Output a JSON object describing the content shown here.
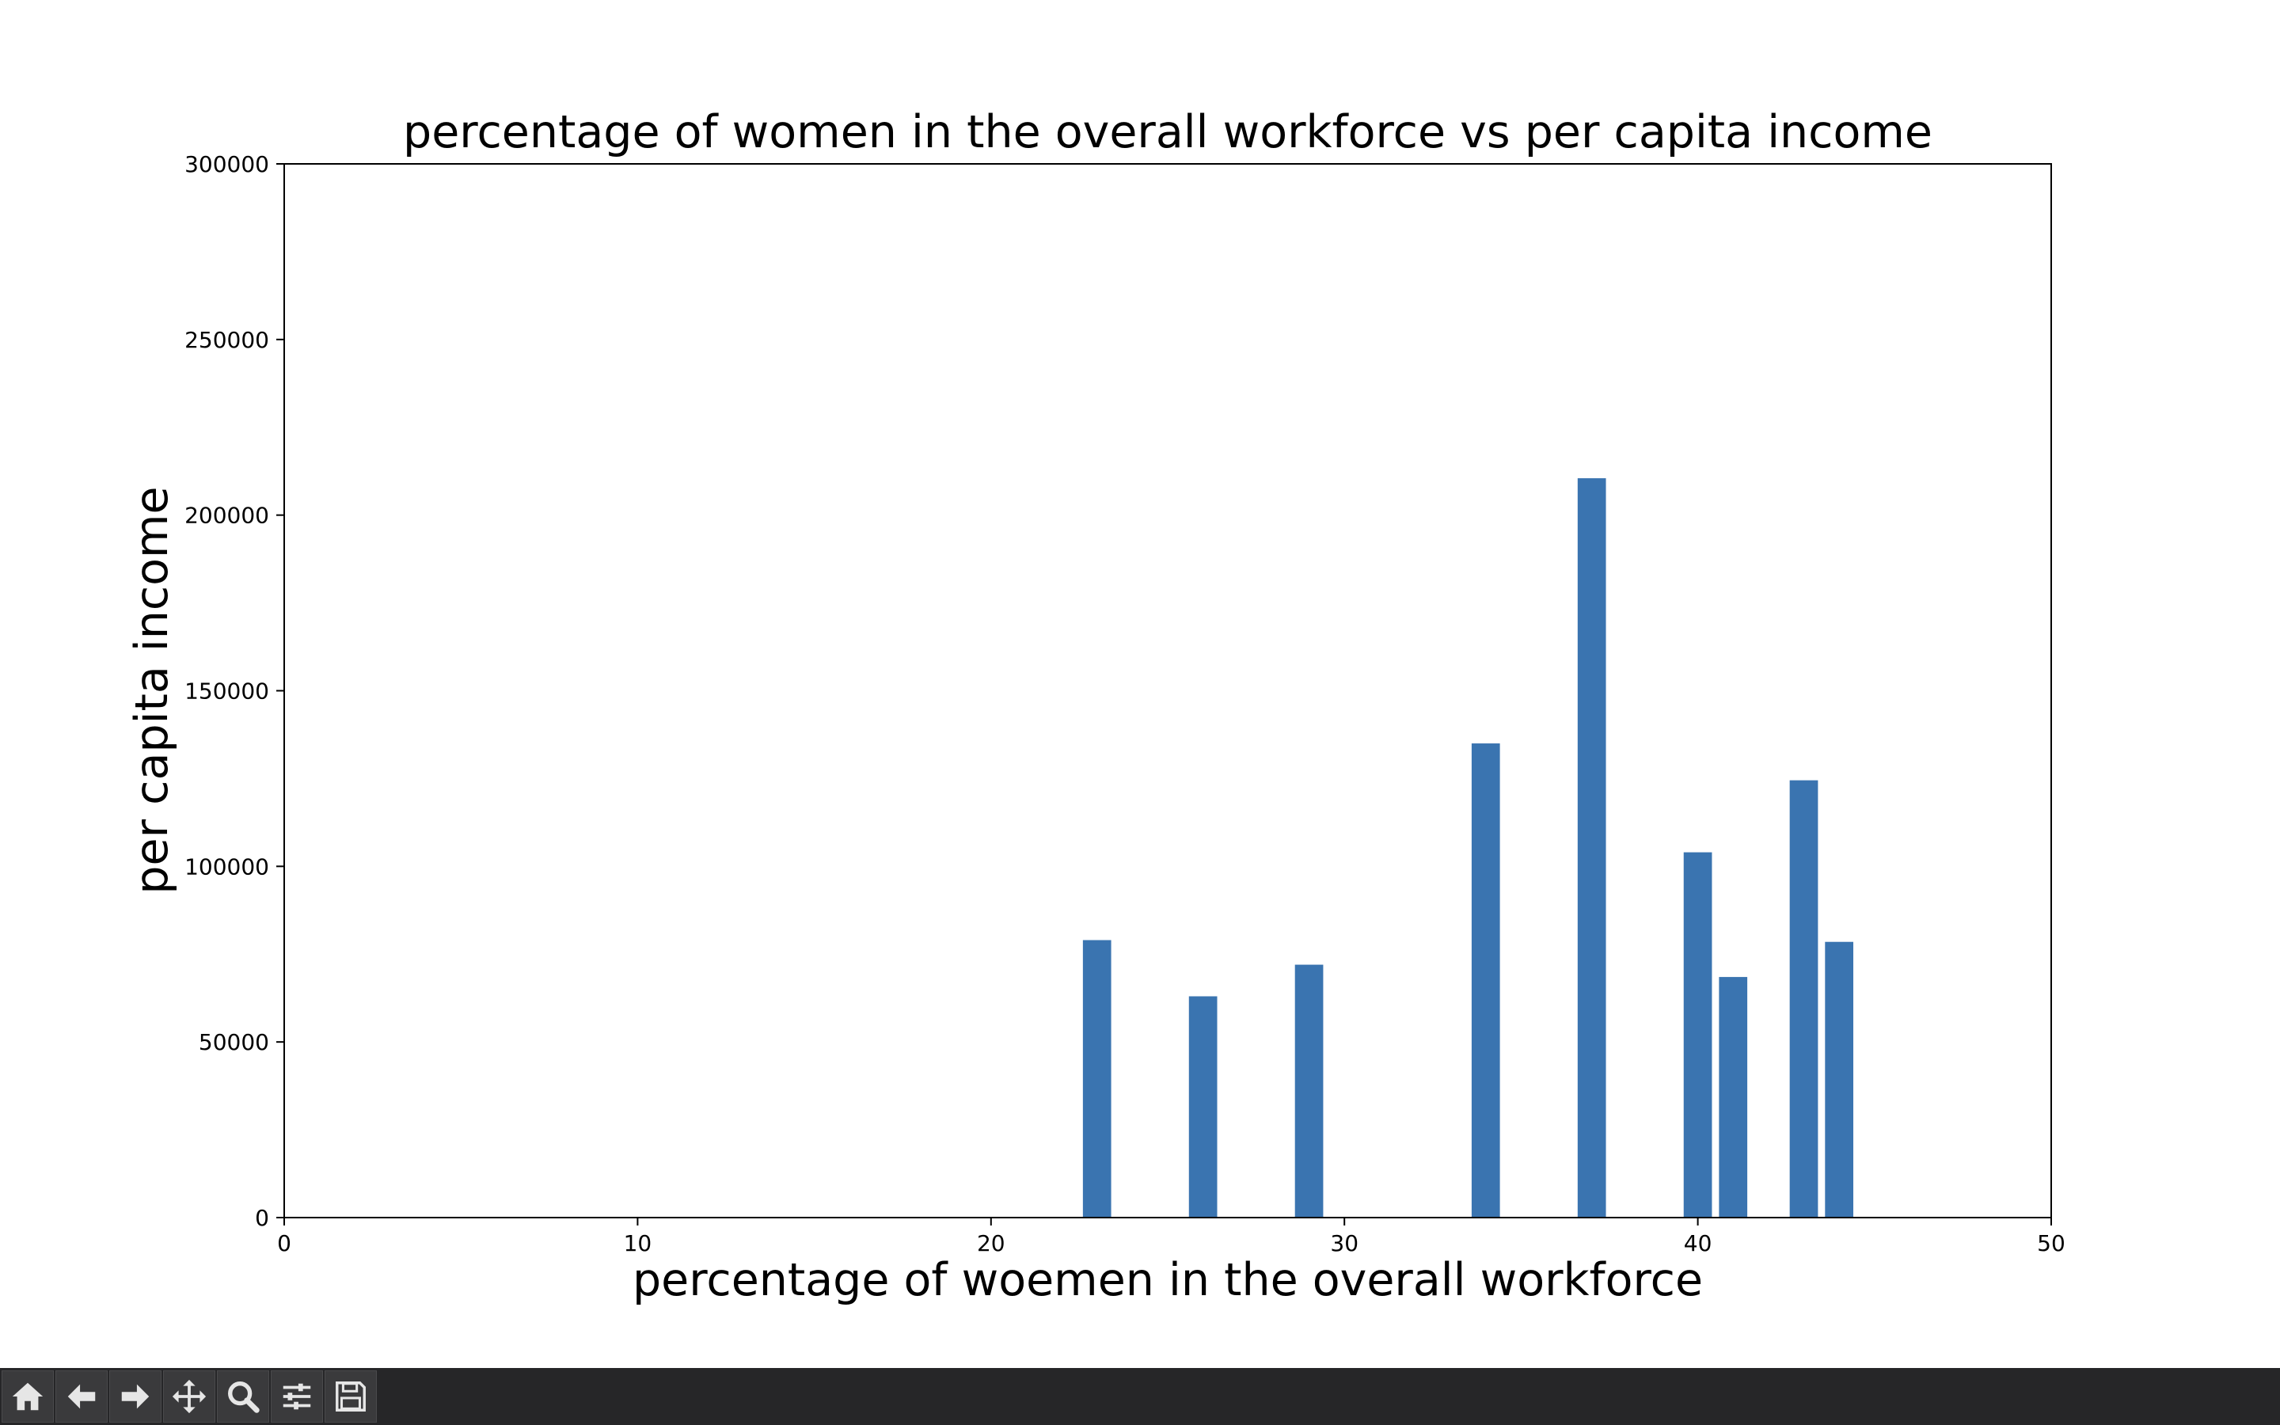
{
  "colors": {
    "bar": "#3a74b0",
    "toolbar_bg": "#262628",
    "toolbar_icon": "#e6e6e6"
  },
  "toolbar": {
    "buttons": [
      {
        "name": "home-button",
        "icon": "home-icon"
      },
      {
        "name": "back-button",
        "icon": "arrow-left-icon"
      },
      {
        "name": "forward-button",
        "icon": "arrow-right-icon"
      },
      {
        "name": "pan-button",
        "icon": "move-icon"
      },
      {
        "name": "zoom-button",
        "icon": "magnifier-icon"
      },
      {
        "name": "configure-subplots-button",
        "icon": "sliders-icon"
      },
      {
        "name": "save-button",
        "icon": "floppy-disk-icon"
      }
    ]
  },
  "chart_data": {
    "type": "bar",
    "title": "percentage of women in the overall workforce vs per capita income",
    "xlabel": "percentage of woemen in the overall workforce",
    "ylabel": "per capita income",
    "xlim": [
      0,
      50
    ],
    "ylim": [
      0,
      300000
    ],
    "xticks": [
      "0",
      "10",
      "20",
      "30",
      "40",
      "50"
    ],
    "yticks": [
      "0",
      "50000",
      "100000",
      "150000",
      "200000",
      "250000",
      "300000"
    ],
    "bar_width": 0.8,
    "grid": false,
    "legend": "none",
    "x": [
      23,
      26,
      29,
      34,
      37,
      40,
      41,
      43,
      44
    ],
    "values": [
      79000,
      63000,
      72000,
      135000,
      210500,
      104000,
      68500,
      124500,
      78500
    ]
  }
}
